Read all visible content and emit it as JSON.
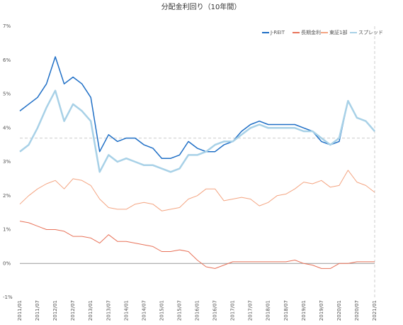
{
  "chart_data": {
    "type": "line",
    "title": "分配金利回り（10年間）",
    "x": [
      "2011/01",
      "2011/04",
      "2011/07",
      "2011/10",
      "2012/01",
      "2012/04",
      "2012/07",
      "2012/10",
      "2013/01",
      "2013/04",
      "2013/07",
      "2013/10",
      "2014/01",
      "2014/04",
      "2014/07",
      "2014/10",
      "2015/01",
      "2015/04",
      "2015/07",
      "2015/10",
      "2016/01",
      "2016/04",
      "2016/07",
      "2016/10",
      "2017/01",
      "2017/04",
      "2017/07",
      "2017/10",
      "2018/01",
      "2018/04",
      "2018/07",
      "2018/10",
      "2019/01",
      "2019/04",
      "2019/07",
      "2019/10",
      "2020/01",
      "2020/04",
      "2020/07",
      "2020/10",
      "2021/01"
    ],
    "series": [
      {
        "name": "J-REIT",
        "color": "#1f6fc6",
        "width": 1.5,
        "values": [
          4.5,
          4.7,
          4.9,
          5.3,
          6.1,
          5.3,
          5.5,
          5.3,
          4.9,
          3.3,
          3.8,
          3.6,
          3.7,
          3.7,
          3.5,
          3.4,
          3.1,
          3.1,
          3.2,
          3.6,
          3.4,
          3.3,
          3.3,
          3.5,
          3.6,
          3.9,
          4.1,
          4.2,
          4.1,
          4.1,
          4.1,
          4.1,
          4.0,
          3.9,
          3.6,
          3.5,
          3.6,
          4.8,
          4.3,
          4.2,
          3.9
        ]
      },
      {
        "name": "長期金利",
        "color": "#e8735a",
        "width": 1,
        "values": [
          1.25,
          1.2,
          1.1,
          1.0,
          1.0,
          0.95,
          0.8,
          0.8,
          0.75,
          0.6,
          0.85,
          0.65,
          0.65,
          0.6,
          0.55,
          0.5,
          0.35,
          0.35,
          0.4,
          0.35,
          0.1,
          -0.1,
          -0.15,
          -0.05,
          0.05,
          0.05,
          0.05,
          0.05,
          0.05,
          0.05,
          0.05,
          0.1,
          0.0,
          -0.05,
          -0.15,
          -0.15,
          0.0,
          0.0,
          0.05,
          0.05,
          0.05
        ]
      },
      {
        "name": "東証1部",
        "color": "#f4a582",
        "width": 1,
        "values": [
          1.75,
          2.0,
          2.2,
          2.35,
          2.45,
          2.2,
          2.5,
          2.45,
          2.3,
          1.9,
          1.65,
          1.6,
          1.6,
          1.75,
          1.8,
          1.75,
          1.55,
          1.6,
          1.65,
          1.9,
          2.0,
          2.2,
          2.2,
          1.85,
          1.9,
          1.95,
          1.9,
          1.7,
          1.8,
          2.0,
          2.05,
          2.2,
          2.4,
          2.35,
          2.45,
          2.25,
          2.3,
          2.75,
          2.4,
          2.3,
          2.1
        ]
      },
      {
        "name": "スプレッド",
        "color": "#a8d1e7",
        "width": 2.5,
        "values": [
          3.3,
          3.5,
          4.0,
          4.6,
          5.1,
          4.2,
          4.7,
          4.5,
          4.2,
          2.7,
          3.2,
          3.0,
          3.1,
          3.0,
          2.9,
          2.9,
          2.8,
          2.7,
          2.8,
          3.2,
          3.2,
          3.3,
          3.5,
          3.6,
          3.6,
          3.8,
          4.0,
          4.1,
          4.0,
          4.0,
          4.0,
          4.0,
          3.9,
          3.9,
          3.7,
          3.5,
          3.7,
          4.8,
          4.3,
          4.2,
          3.9
        ]
      }
    ],
    "ylim": [
      -1,
      7
    ],
    "yticks": [
      {
        "value": -1,
        "label": "-1%"
      },
      {
        "value": 0,
        "label": "0%"
      },
      {
        "value": 1,
        "label": "1%"
      },
      {
        "value": 2,
        "label": "2%"
      },
      {
        "value": 3,
        "label": "3%"
      },
      {
        "value": 4,
        "label": "4%"
      },
      {
        "value": 5,
        "label": "5%"
      },
      {
        "value": 6,
        "label": "6%"
      },
      {
        "value": 7,
        "label": "7%"
      }
    ],
    "xticks": [
      "2011/01",
      "2011/07",
      "2012/01",
      "2012/07",
      "2013/01",
      "2013/07",
      "2014/01",
      "2014/07",
      "2015/01",
      "2015/07",
      "2016/01",
      "2016/07",
      "2017/01",
      "2017/07",
      "2018/01",
      "2018/07",
      "2019/01",
      "2019/07",
      "2020/01",
      "2020/07",
      "2021/01"
    ],
    "reference_y": 3.7,
    "legend": "top-right"
  }
}
